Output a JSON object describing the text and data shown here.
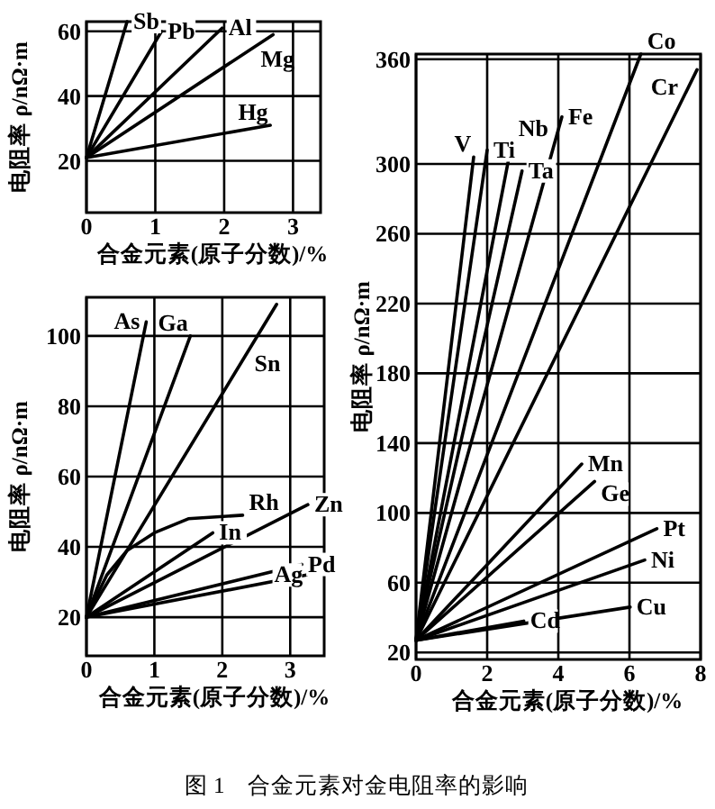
{
  "chart_data": [
    {
      "type": "line",
      "xlabel": "合金元素(原子分数)/%",
      "ylabel": "电阻率 ρ/nΩ·m",
      "xlim": [
        0,
        3.4
      ],
      "ylim": [
        4,
        63
      ],
      "xticks": [
        0,
        1,
        2,
        3
      ],
      "yticks": [
        20,
        40,
        60
      ],
      "grid": true,
      "marker": "none",
      "line_style": "solid",
      "series": [
        {
          "name": "Sb",
          "color": "#000000",
          "x": [
            0,
            0.59
          ],
          "values": [
            21,
            63
          ]
        },
        {
          "name": "Pb",
          "color": "#000000",
          "x": [
            0,
            1.09
          ],
          "values": [
            21,
            60
          ]
        },
        {
          "name": "Al",
          "color": "#000000",
          "x": [
            0,
            1.97
          ],
          "values": [
            21,
            61
          ]
        },
        {
          "name": "Mg",
          "color": "#000000",
          "x": [
            0,
            2.71
          ],
          "values": [
            21,
            59
          ]
        },
        {
          "name": "Hg",
          "color": "#000000",
          "x": [
            0,
            2.67
          ],
          "values": [
            21,
            31
          ]
        }
      ]
    },
    {
      "type": "line",
      "xlabel": "合金元素(原子分数)/%",
      "ylabel": "电阻率 ρ/nΩ·m",
      "xlim": [
        0,
        3.5
      ],
      "ylim": [
        9,
        111
      ],
      "xticks": [
        0,
        1,
        2,
        3
      ],
      "yticks": [
        20,
        40,
        60,
        80,
        100
      ],
      "grid": true,
      "marker": "none",
      "line_style": "solid",
      "series": [
        {
          "name": "As",
          "color": "#000000",
          "x": [
            0,
            0.88
          ],
          "values": [
            20,
            104
          ]
        },
        {
          "name": "Ga",
          "color": "#000000",
          "x": [
            0,
            1.53
          ],
          "values": [
            20,
            100
          ]
        },
        {
          "name": "Sn",
          "color": "#000000",
          "x": [
            0,
            2.8
          ],
          "values": [
            20,
            109
          ]
        },
        {
          "name": "Rh",
          "color": "#000000",
          "x": [
            0,
            0.3,
            0.6,
            1,
            1.5,
            2.3
          ],
          "values": [
            20,
            32,
            39,
            44,
            48,
            49
          ]
        },
        {
          "name": "In",
          "color": "#000000",
          "x": [
            0,
            1.86
          ],
          "values": [
            20,
            44
          ]
        },
        {
          "name": "Zn",
          "color": "#000000",
          "x": [
            0,
            3.26
          ],
          "values": [
            20,
            52
          ]
        },
        {
          "name": "Pd",
          "color": "#000000",
          "x": [
            0,
            3.17
          ],
          "values": [
            20,
            35
          ]
        },
        {
          "name": "Ag",
          "color": "#000000",
          "x": [
            0,
            3.24
          ],
          "values": [
            20,
            32
          ]
        }
      ]
    },
    {
      "type": "line",
      "xlabel": "合金元素(原子分数)/%",
      "ylabel": "电阻率 ρ/nΩ·m",
      "xlim": [
        0,
        8
      ],
      "ylim": [
        16,
        363
      ],
      "xticks": [
        0,
        2,
        4,
        6,
        8
      ],
      "yticks": [
        20,
        60,
        100,
        140,
        180,
        220,
        260,
        300,
        360
      ],
      "grid": true,
      "marker": "none",
      "line_style": "solid",
      "annotations": [
        "图 1　合金元素对金电阻率的影响"
      ],
      "series": [
        {
          "name": "V",
          "color": "#000000",
          "x": [
            0,
            1.62
          ],
          "values": [
            27,
            304
          ]
        },
        {
          "name": "Ti",
          "color": "#000000",
          "x": [
            0,
            2.0
          ],
          "values": [
            27,
            308
          ]
        },
        {
          "name": "Nb",
          "color": "#000000",
          "x": [
            0,
            2.7
          ],
          "values": [
            27,
            313
          ]
        },
        {
          "name": "Ta",
          "color": "#000000",
          "x": [
            0,
            2.98
          ],
          "values": [
            27,
            296
          ]
        },
        {
          "name": "Fe",
          "color": "#000000",
          "x": [
            0,
            4.1
          ],
          "values": [
            27,
            327
          ]
        },
        {
          "name": "Co",
          "color": "#000000",
          "x": [
            0,
            6.32
          ],
          "values": [
            27,
            363
          ]
        },
        {
          "name": "Cr",
          "color": "#000000",
          "x": [
            0,
            7.9
          ],
          "values": [
            27,
            354
          ]
        },
        {
          "name": "Mn",
          "color": "#000000",
          "x": [
            0,
            4.66
          ],
          "values": [
            27,
            128
          ]
        },
        {
          "name": "Ge",
          "color": "#000000",
          "x": [
            0,
            5.02
          ],
          "values": [
            27,
            118
          ]
        },
        {
          "name": "Pt",
          "color": "#000000",
          "x": [
            0,
            6.77
          ],
          "values": [
            27,
            91
          ]
        },
        {
          "name": "Ni",
          "color": "#000000",
          "x": [
            0,
            6.43
          ],
          "values": [
            27,
            73
          ]
        },
        {
          "name": "Cu",
          "color": "#000000",
          "x": [
            0,
            6.02
          ],
          "values": [
            27,
            46
          ]
        },
        {
          "name": "Cd",
          "color": "#000000",
          "x": [
            0,
            3.03
          ],
          "values": [
            27,
            38
          ]
        }
      ]
    }
  ]
}
